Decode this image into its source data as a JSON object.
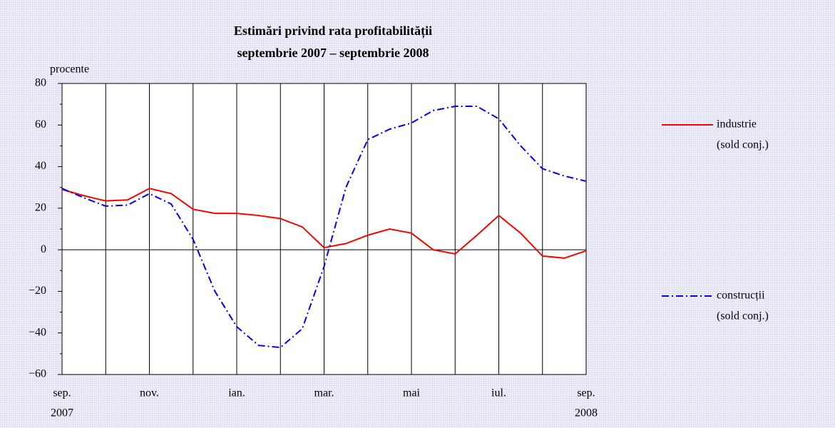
{
  "chart_data": {
    "type": "line",
    "title": "Estimări privind rata profitabilității",
    "subtitle": "septembrie 2007 – septembrie 2008",
    "y_label": "procente",
    "x": [
      0,
      0.5,
      1,
      1.5,
      2,
      2.5,
      3,
      3.5,
      4,
      4.5,
      5,
      5.5,
      6,
      6.5,
      7,
      7.5,
      8,
      8.5,
      9,
      9.5,
      10,
      10.5,
      11,
      11.5,
      12
    ],
    "series": [
      {
        "name": "industrie",
        "note": "(sold conj.)",
        "color": "#ff0000",
        "dash": "solid",
        "values": [
          29,
          26,
          23.5,
          24,
          29.5,
          27,
          19.5,
          17.5,
          17.5,
          16.5,
          15,
          11,
          1,
          3,
          7,
          10,
          8,
          0,
          -2,
          7,
          16.5,
          8,
          -3,
          -4,
          -0.5
        ]
      },
      {
        "name": "construcții",
        "note": "(sold conj.)",
        "color": "#0000ff",
        "dash": "dashdot",
        "values": [
          29.5,
          25,
          21,
          21.5,
          27,
          22,
          5,
          -20,
          -37,
          -46,
          -47,
          -38,
          -8,
          30,
          53,
          58,
          61,
          67,
          69,
          69,
          63,
          50,
          39,
          35.5,
          33
        ]
      }
    ],
    "xlim": [
      0,
      12
    ],
    "xticks": [
      {
        "value": 0,
        "label": "sep."
      },
      {
        "value": 2,
        "label": "nov."
      },
      {
        "value": 4,
        "label": "ian."
      },
      {
        "value": 6,
        "label": "mar."
      },
      {
        "value": 8,
        "label": "mai"
      },
      {
        "value": 10,
        "label": "iul."
      },
      {
        "value": 12,
        "label": "sep."
      }
    ],
    "year_labels": [
      {
        "value": 0,
        "label": "2007"
      },
      {
        "value": 12,
        "label": "2008"
      }
    ],
    "xgrid": [
      1,
      2,
      3,
      4,
      5,
      6,
      7,
      8,
      9,
      10,
      11
    ],
    "ylim": [
      -60,
      80
    ],
    "yticks": [
      {
        "value": -60,
        "label": "−60"
      },
      {
        "value": -40,
        "label": "−40"
      },
      {
        "value": -20,
        "label": "−20"
      },
      0,
      20,
      40,
      60,
      80
    ],
    "yminorticks": [
      -50,
      -30,
      -10,
      10,
      30,
      50,
      70
    ]
  }
}
